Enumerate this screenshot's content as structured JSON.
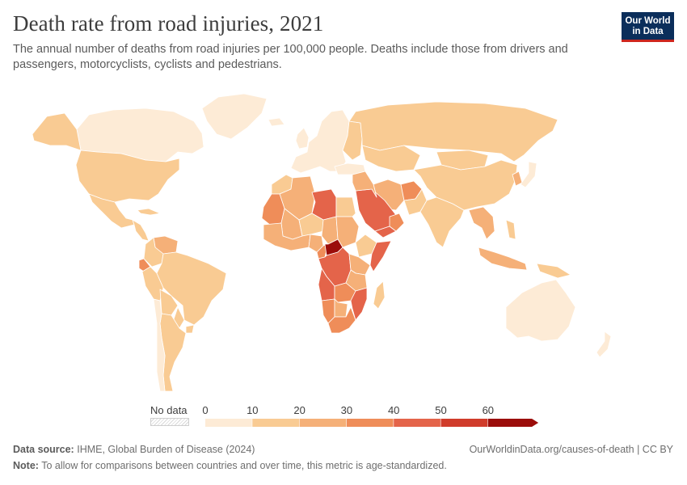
{
  "header": {
    "title": "Death rate from road injuries, 2021",
    "subtitle": "The annual number of deaths from road injuries per 100,000 people. Deaths include those from drivers and passengers, motorcyclists, cyclists and pedestrians."
  },
  "logo": {
    "line1": "Our World",
    "line2": "in Data"
  },
  "legend": {
    "no_data_label": "No data",
    "ticks": [
      "0",
      "10",
      "20",
      "30",
      "40",
      "50",
      "60"
    ],
    "bins": [
      {
        "from": 0,
        "to": 10,
        "color": "#fdebd6"
      },
      {
        "from": 10,
        "to": 20,
        "color": "#f9cb93"
      },
      {
        "from": 20,
        "to": 30,
        "color": "#f5b078"
      },
      {
        "from": 30,
        "to": 40,
        "color": "#ef8d59"
      },
      {
        "from": 40,
        "to": 50,
        "color": "#e4644a"
      },
      {
        "from": 50,
        "to": 60,
        "color": "#d03c2b"
      },
      {
        "from": 60,
        "to": 70,
        "color": "#9b0d0a"
      }
    ]
  },
  "map": {
    "regions": [
      {
        "name": "Canada",
        "bin": 0
      },
      {
        "name": "Alaska",
        "bin": 1
      },
      {
        "name": "Greenland",
        "bin": 0
      },
      {
        "name": "United States",
        "bin": 1
      },
      {
        "name": "Mexico",
        "bin": 1
      },
      {
        "name": "Central America",
        "bin": 1
      },
      {
        "name": "Cuba",
        "bin": 1
      },
      {
        "name": "Venezuela",
        "bin": 2
      },
      {
        "name": "Colombia",
        "bin": 1
      },
      {
        "name": "Ecuador",
        "bin": 3
      },
      {
        "name": "Peru",
        "bin": 1
      },
      {
        "name": "Brazil",
        "bin": 1
      },
      {
        "name": "Bolivia",
        "bin": 1
      },
      {
        "name": "Paraguay",
        "bin": 1
      },
      {
        "name": "Argentina",
        "bin": 1
      },
      {
        "name": "Chile",
        "bin": 0
      },
      {
        "name": "Uruguay",
        "bin": 1
      },
      {
        "name": "Iceland",
        "bin": 0
      },
      {
        "name": "United Kingdom",
        "bin": 0
      },
      {
        "name": "Europe",
        "bin": 0
      },
      {
        "name": "Eastern Europe",
        "bin": 1
      },
      {
        "name": "Russia",
        "bin": 1
      },
      {
        "name": "Kazakhstan",
        "bin": 1
      },
      {
        "name": "Turkey",
        "bin": 0
      },
      {
        "name": "Iran",
        "bin": 2
      },
      {
        "name": "Afghanistan",
        "bin": 3
      },
      {
        "name": "Pakistan",
        "bin": 1
      },
      {
        "name": "India",
        "bin": 1
      },
      {
        "name": "Mongolia",
        "bin": 1
      },
      {
        "name": "China",
        "bin": 1
      },
      {
        "name": "Korea",
        "bin": 2
      },
      {
        "name": "Japan",
        "bin": 0
      },
      {
        "name": "Southeast Asia",
        "bin": 2
      },
      {
        "name": "Indonesia",
        "bin": 2
      },
      {
        "name": "Papua New Guinea",
        "bin": 1
      },
      {
        "name": "Philippines",
        "bin": 1
      },
      {
        "name": "Australia",
        "bin": 0
      },
      {
        "name": "New Zealand",
        "bin": 0
      },
      {
        "name": "Madagascar",
        "bin": 1
      },
      {
        "name": "Morocco",
        "bin": 1
      },
      {
        "name": "Algeria",
        "bin": 2
      },
      {
        "name": "Libya",
        "bin": 4
      },
      {
        "name": "Egypt",
        "bin": 1
      },
      {
        "name": "Mauritania",
        "bin": 3
      },
      {
        "name": "Mali",
        "bin": 2
      },
      {
        "name": "Niger",
        "bin": 1
      },
      {
        "name": "Chad",
        "bin": 2
      },
      {
        "name": "Sudan",
        "bin": 2
      },
      {
        "name": "Ethiopia",
        "bin": 1
      },
      {
        "name": "Somalia",
        "bin": 4
      },
      {
        "name": "West Africa",
        "bin": 2
      },
      {
        "name": "Nigeria",
        "bin": 2
      },
      {
        "name": "Cameroon",
        "bin": 3
      },
      {
        "name": "Central African Republic",
        "bin": 6
      },
      {
        "name": "DR Congo",
        "bin": 4
      },
      {
        "name": "Kenya",
        "bin": 2
      },
      {
        "name": "Tanzania",
        "bin": 2
      },
      {
        "name": "Angola",
        "bin": 4
      },
      {
        "name": "Zambia",
        "bin": 3
      },
      {
        "name": "Mozambique",
        "bin": 4
      },
      {
        "name": "Namibia",
        "bin": 3
      },
      {
        "name": "Botswana",
        "bin": 2
      },
      {
        "name": "South Africa",
        "bin": 3
      },
      {
        "name": "Saudi Arabia",
        "bin": 4
      },
      {
        "name": "Yemen",
        "bin": 4
      },
      {
        "name": "Oman",
        "bin": 3
      },
      {
        "name": "Iraq and Syria",
        "bin": 2
      }
    ]
  },
  "footer": {
    "source_label": "Data source:",
    "source_text": "IHME, Global Burden of Disease (2024)",
    "url_text": "OurWorldinData.org/causes-of-death | CC BY",
    "note_label": "Note:",
    "note_text": "To allow for comparisons between countries and over time, this metric is age-standardized."
  }
}
